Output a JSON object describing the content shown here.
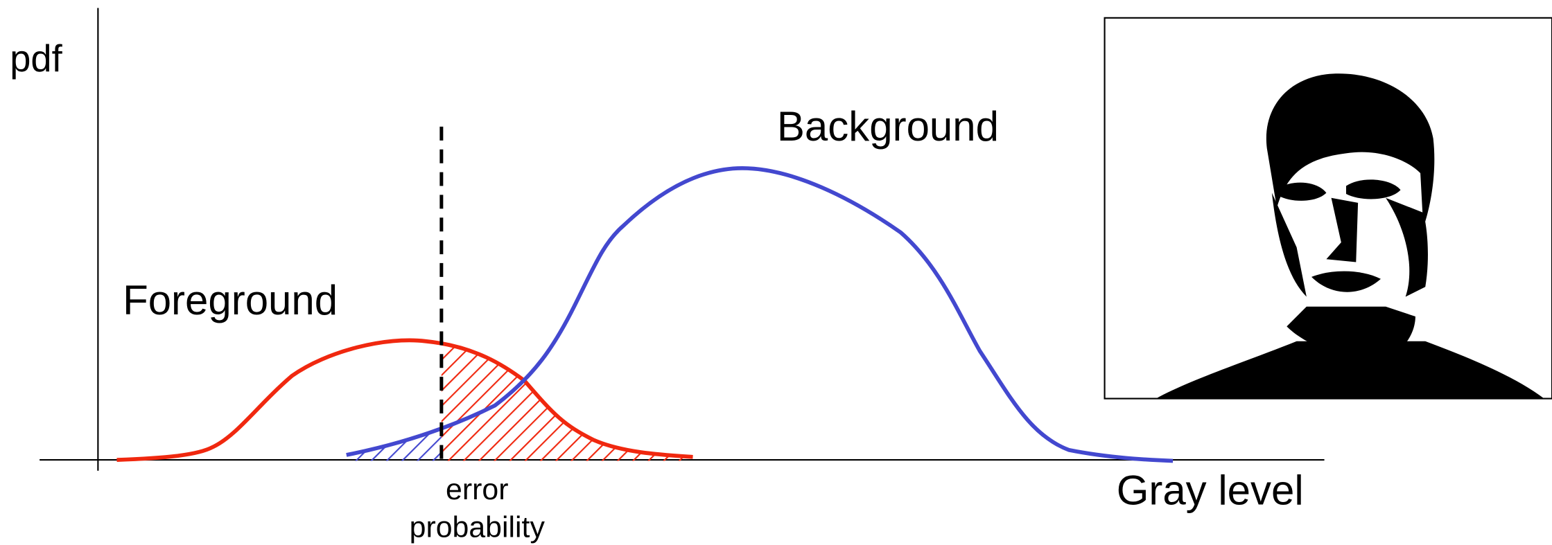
{
  "labels": {
    "y_axis": "pdf",
    "x_axis": "Gray level",
    "background": "Background",
    "foreground": "Foreground",
    "error": [
      "error",
      "probability"
    ]
  }
}
